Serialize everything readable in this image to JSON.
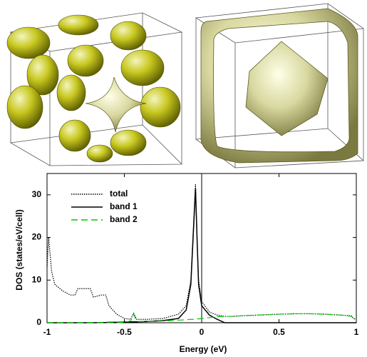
{
  "chart_data": {
    "type": "line",
    "xlabel": "Energy (eV)",
    "ylabel": "DOS (states/eV/cell)",
    "x": [
      -1,
      -0.99,
      -0.97,
      -0.95,
      -0.9,
      -0.85,
      -0.82,
      -0.8,
      -0.75,
      -0.72,
      -0.7,
      -0.65,
      -0.62,
      -0.6,
      -0.55,
      -0.5,
      -0.46,
      -0.44,
      -0.42,
      -0.35,
      -0.25,
      -0.15,
      -0.1,
      -0.07,
      -0.05,
      -0.04,
      -0.03,
      -0.02,
      0,
      0.05,
      0.1,
      0.15,
      0.2,
      0.3,
      0.5,
      0.6,
      0.7,
      0.8,
      0.9,
      0.97,
      0.98,
      1
    ],
    "series": [
      {
        "name": "total",
        "color": "#000000",
        "style": "dotted",
        "values": [
          13,
          20,
          12,
          9,
          7.5,
          6.5,
          6.5,
          8,
          8,
          8,
          6,
          6.5,
          6.5,
          4,
          2,
          1,
          0.8,
          2.2,
          0.8,
          0.8,
          1,
          2,
          4,
          10,
          25,
          32.5,
          20,
          10,
          5,
          2.5,
          1.8,
          1.5,
          1.5,
          1.7,
          2,
          2.1,
          2.1,
          2,
          1.8,
          1.6,
          1,
          0.8
        ]
      },
      {
        "name": "band 1",
        "color": "#000000",
        "style": "solid",
        "values": [
          0,
          0,
          0,
          0,
          0,
          0,
          0,
          0,
          0,
          0,
          0,
          0.05,
          0.05,
          0.1,
          0.1,
          0.15,
          0.2,
          0.2,
          0.2,
          0.3,
          0.5,
          1,
          3,
          9,
          24,
          31.5,
          20,
          9,
          4,
          1.8,
          0.8,
          0,
          0,
          0,
          0,
          0,
          0,
          0,
          0,
          0,
          0,
          0
        ]
      },
      {
        "name": "band 2",
        "color": "#00cc00",
        "style": "dashed",
        "values": [
          0,
          0,
          0,
          0,
          0,
          0,
          0,
          0,
          0,
          0,
          0,
          0,
          0,
          0,
          0,
          0.1,
          0.4,
          2,
          0.3,
          0.3,
          0.4,
          0.6,
          0.7,
          0.8,
          0.8,
          0.9,
          0.9,
          0.9,
          1,
          1.2,
          1.4,
          1.5,
          1.5,
          1.7,
          2,
          2.1,
          2.1,
          2,
          1.8,
          1.5,
          1,
          0.8
        ]
      }
    ],
    "xlim": [
      -1,
      1
    ],
    "xticks": [
      -1,
      -0.5,
      0,
      0.5,
      1
    ],
    "ylim": [
      0,
      35
    ],
    "yticks": [
      0,
      10,
      20,
      30
    ],
    "legend": "upper-left",
    "grid": false
  }
}
